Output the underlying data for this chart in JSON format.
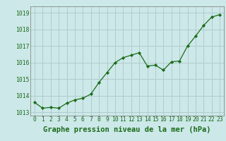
{
  "x": [
    0,
    1,
    2,
    3,
    4,
    5,
    6,
    7,
    8,
    9,
    10,
    11,
    12,
    13,
    14,
    15,
    16,
    17,
    18,
    19,
    20,
    21,
    22,
    23
  ],
  "y": [
    1013.6,
    1013.25,
    1013.3,
    1013.25,
    1013.55,
    1013.75,
    1013.85,
    1014.1,
    1014.8,
    1015.4,
    1016.0,
    1016.3,
    1016.45,
    1016.6,
    1015.8,
    1015.85,
    1015.55,
    1016.05,
    1016.1,
    1017.0,
    1017.6,
    1018.25,
    1018.75,
    1018.9
  ],
  "line_color": "#1a6b1a",
  "marker_color": "#1a6b1a",
  "bg_color": "#cce8e8",
  "grid_color": "#b0cccc",
  "border_color": "#888888",
  "xlabel": "Graphe pression niveau de la mer (hPa)",
  "xlabel_color": "#1a6b1a",
  "tick_color": "#1a6b1a",
  "ylim": [
    1012.8,
    1019.4
  ],
  "yticks": [
    1013,
    1014,
    1015,
    1016,
    1017,
    1018,
    1019
  ],
  "xticks": [
    0,
    1,
    2,
    3,
    4,
    5,
    6,
    7,
    8,
    9,
    10,
    11,
    12,
    13,
    14,
    15,
    16,
    17,
    18,
    19,
    20,
    21,
    22,
    23
  ],
  "tick_fontsize": 5.8,
  "xlabel_fontsize": 7.5
}
